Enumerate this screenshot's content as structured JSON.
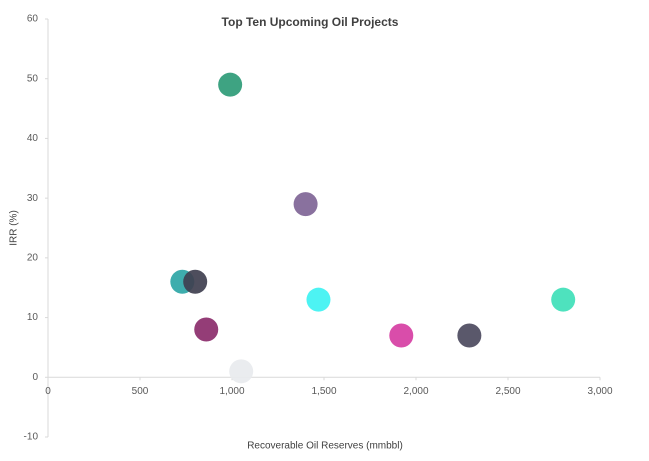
{
  "chart_data": {
    "type": "scatter",
    "title": "Top Ten Upcoming Oil Projects",
    "x_label": "Recoverable Oil Reserves (mmbbl)",
    "y_label": "IRR (%)",
    "x": [
      990,
      1400,
      730,
      800,
      860,
      1050,
      1470,
      1920,
      2290,
      2800
    ],
    "values": [
      49,
      29,
      16,
      16,
      8,
      1,
      13,
      7,
      7,
      13
    ],
    "colors": [
      "#2e9b77",
      "#7f6596",
      "#2ea6a6",
      "#3f3f4f",
      "#8b2d6b",
      "#e8eaee",
      "#3ef2f2",
      "#d63ea3",
      "#4c4a5e",
      "#3fe0b8"
    ],
    "xlim": [
      0,
      3000
    ],
    "xticks": [
      0,
      500,
      {
        "value": 1000,
        "label": "1,000"
      },
      {
        "value": 1500,
        "label": "1,500"
      },
      {
        "value": 2000,
        "label": "2,000"
      },
      {
        "value": 2500,
        "label": "2,500"
      },
      {
        "value": 3000,
        "label": "3,000"
      }
    ],
    "ylim": [
      -10,
      60
    ],
    "yticks": [
      -10,
      0,
      10,
      20,
      30,
      40,
      50,
      60
    ],
    "grid": false
  }
}
